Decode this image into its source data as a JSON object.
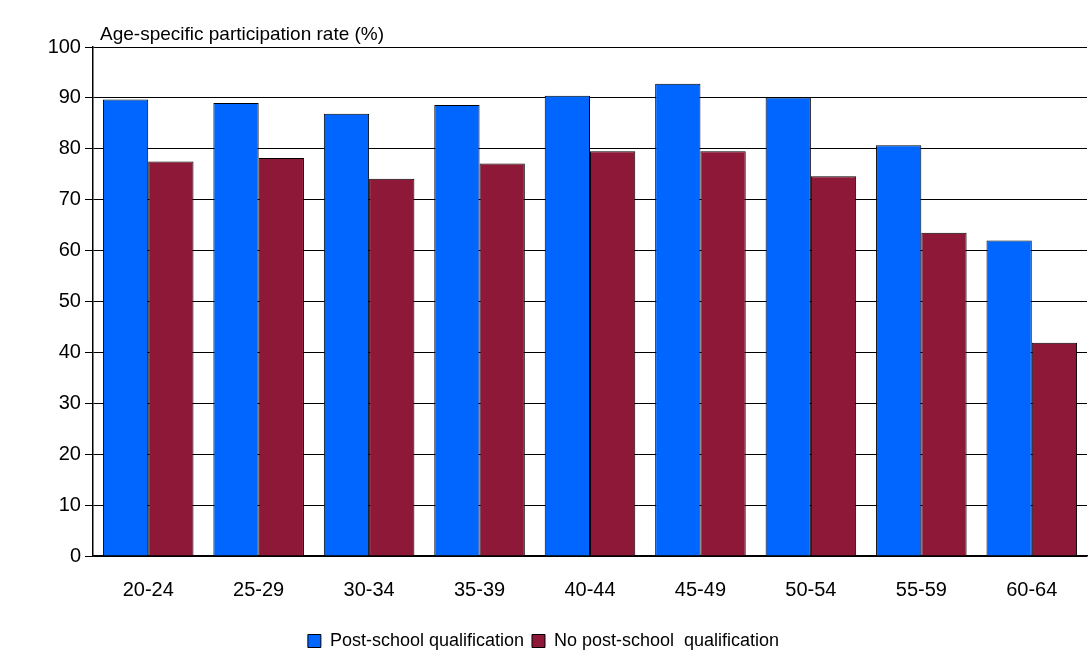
{
  "chart_data": {
    "type": "bar",
    "ylabel": "Age-specific participation rate (%)",
    "categories": [
      "20-24",
      "25-29",
      "30-34",
      "35-39",
      "40-44",
      "45-49",
      "50-54",
      "55-59",
      "60-64"
    ],
    "series": [
      {
        "name": "Post-school qualification",
        "color": "#0066ff",
        "values": [
          89.7,
          89.0,
          86.9,
          88.6,
          90.4,
          92.8,
          90.1,
          80.7,
          62.0
        ]
      },
      {
        "name": "No post-school  qualification",
        "color": "#8e1838",
        "values": [
          77.5,
          78.2,
          74.1,
          77.1,
          79.5,
          79.5,
          74.6,
          63.5,
          41.9
        ]
      }
    ],
    "ylim": [
      0,
      100
    ],
    "yticks": [
      0,
      10,
      20,
      30,
      40,
      50,
      60,
      70,
      80,
      90,
      100
    ],
    "grid": "y",
    "legend": "bottom"
  }
}
